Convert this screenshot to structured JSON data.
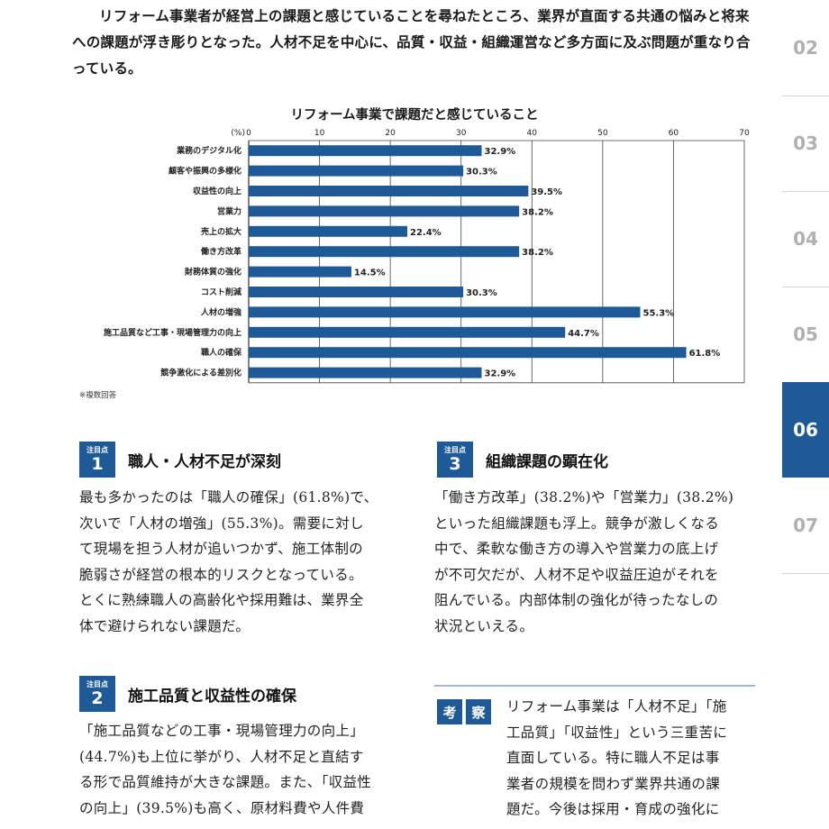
{
  "intro": "リフォーム事業者が経営上の課題と感じていることを尋ねたところ、業界が直面する共通の悩みと将来への課題が浮き彫りとなった。人材不足を中心に、品質・収益・組織運営など多方面に及ぶ問題が重なり合っている。",
  "chart_data": {
    "type": "bar",
    "orientation": "horizontal",
    "title": "リフォーム事業で課題だと感じていること",
    "unit_label": "(%)",
    "xlim": [
      0,
      70
    ],
    "ticks": [
      0,
      10,
      20,
      30,
      40,
      50,
      60,
      70
    ],
    "grid": true,
    "bar_color": "#1f5a98",
    "categories": [
      "業務のデジタル化",
      "顧客や振興の多様化",
      "収益性の向上",
      "営業力",
      "売上の拡大",
      "働き方改革",
      "財務体質の強化",
      "コスト削減",
      "人材の増強",
      "施工品質など工事・現場管理力の向上",
      "職人の確保",
      "競争激化による差別化"
    ],
    "values": [
      32.9,
      30.3,
      39.5,
      38.2,
      22.4,
      38.2,
      14.5,
      30.3,
      55.3,
      44.7,
      61.8,
      32.9
    ],
    "value_labels": [
      "32.9%",
      "30.3%",
      "39.5%",
      "38.2%",
      "22.4%",
      "38.2%",
      "14.5%",
      "30.3%",
      "55.3%",
      "44.7%",
      "61.8%",
      "32.9%"
    ]
  },
  "note": "※複数回答",
  "sections": [
    {
      "label": "注目点",
      "num": "1",
      "title": "職人・人材不足が深刻",
      "lines": [
        "最も多かったのは「職人の確保」(61.8%)で、",
        "次いで「人材の増強」(55.3%)。需要に対し",
        "て現場を担う人材が追いつかず、施工体制の",
        "脆弱さが経営の根本的リスクとなっている。",
        "とくに熟練職人の高齢化や採用難は、業界全",
        "体で避けられない課題だ。"
      ]
    },
    {
      "label": "注目点",
      "num": "2",
      "title": "施工品質と収益性の確保",
      "lines": [
        "「施工品質などの工事・現場管理力の向上」",
        "(44.7%)も上位に挙がり、人材不足と直結す",
        "る形で品質維持が大きな課題。また、「収益性",
        "の向上」(39.5%)も高く、原材料費や人件費"
      ]
    },
    {
      "label": "注目点",
      "num": "3",
      "title": "組織課題の顕在化",
      "lines": [
        "「働き方改革」(38.2%)や「営業力」(38.2%)",
        "といった組織課題も浮上。競争が激しくなる",
        "中で、柔軟な働き方の導入や営業力の底上げ",
        "が不可欠だが、人材不足や収益圧迫がそれを",
        "阻んでいる。内部体制の強化が待ったなしの",
        "状況といえる。"
      ]
    }
  ],
  "kousatsu": {
    "badges": [
      "考",
      "察"
    ],
    "lines": [
      "リフォーム事業は「人材不足」「施",
      "工品質」「収益性」という三重苦に",
      "直面している。特に職人不足は事",
      "業者の規模を問わず業界共通の課",
      "題だ。今後は採用・育成の強化に"
    ]
  },
  "nav": [
    {
      "label": "02",
      "active": false
    },
    {
      "label": "03",
      "active": false
    },
    {
      "label": "04",
      "active": false
    },
    {
      "label": "05",
      "active": false
    },
    {
      "label": "06",
      "active": true
    },
    {
      "label": "07",
      "active": false
    }
  ]
}
